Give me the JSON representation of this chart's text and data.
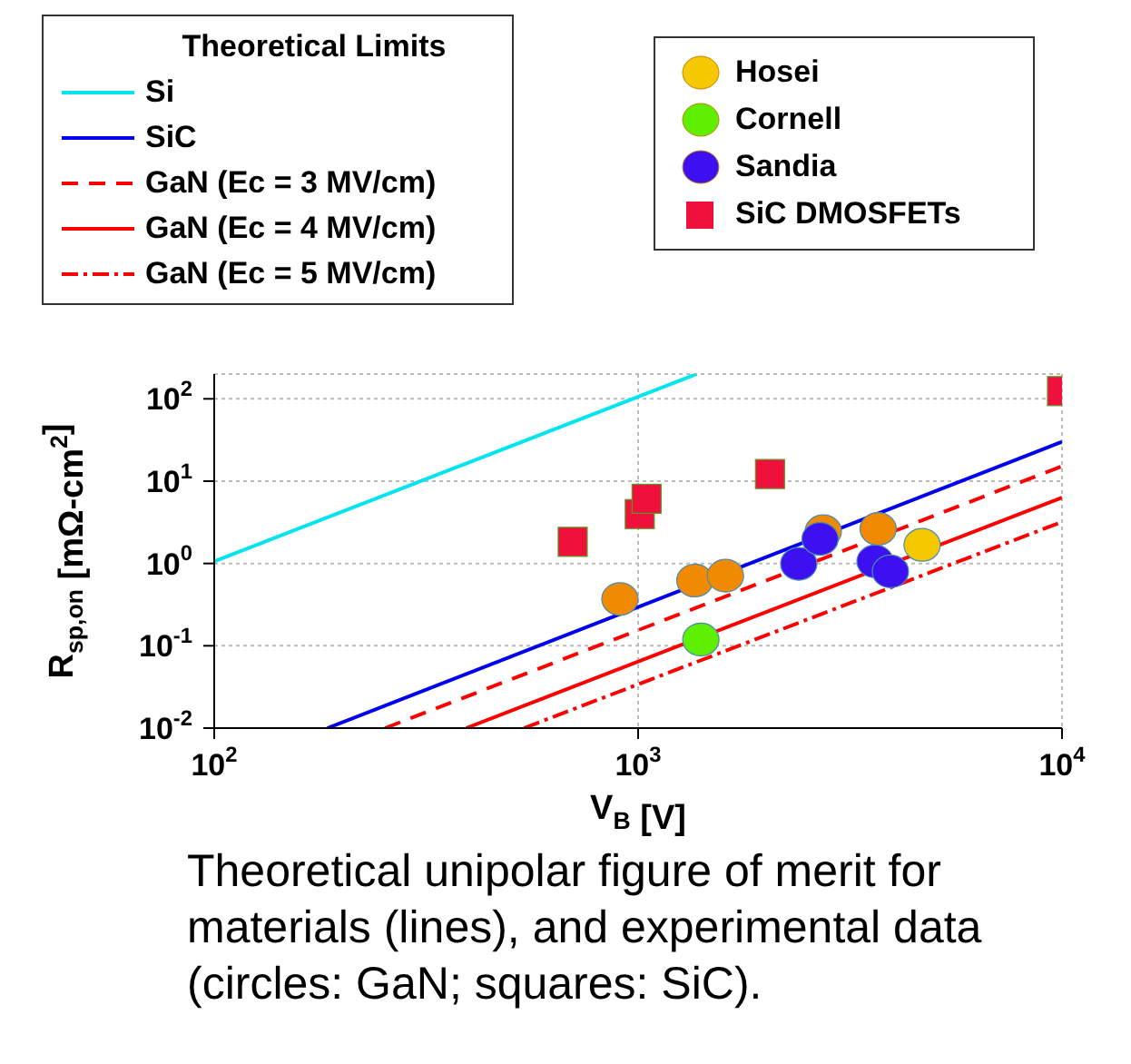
{
  "chart_data": {
    "type": "line",
    "xlabel": "V$_{B}$ [V]",
    "ylabel": "R$_{sp,on}$ [mΩ-cm$^{2}$]",
    "legend_title": "Theoretical Limits",
    "log": "xy",
    "grid": true,
    "legend": "top",
    "xlim": [
      100,
      10000
    ],
    "xticks": [
      {
        "value": 100,
        "label": "10$^{2}$"
      },
      {
        "value": 1000,
        "label": "10$^{3}$"
      },
      {
        "value": 10000,
        "label": "10$^{4}$"
      }
    ],
    "ylim": [
      0.01,
      200
    ],
    "yticks": [
      {
        "value": 0.01,
        "label": "10$^{-2}$"
      },
      {
        "value": 0.1,
        "label": "10$^{-1}$"
      },
      {
        "value": 1,
        "label": "10$^{0}$"
      },
      {
        "value": 10,
        "label": "10$^{1}$"
      },
      {
        "value": 100,
        "label": "10$^{2}$"
      }
    ],
    "series": [
      {
        "name": "Si",
        "color": "#00e5ee",
        "x": [
          100,
          1374
        ],
        "values": [
          1.06,
          200
        ],
        "line_style": "solid"
      },
      {
        "name": "SiC",
        "color": "#0000ee",
        "x": [
          185,
          10000
        ],
        "values": [
          0.01,
          30
        ],
        "line_style": "solid"
      },
      {
        "name": "GaN (Ec = 3 MV/cm)",
        "color": "#ff0000",
        "x": [
          253,
          10000
        ],
        "values": [
          0.01,
          15.2
        ],
        "line_style": "dashed"
      },
      {
        "name": "GaN (Ec = 4 MV/cm)",
        "color": "#ff0000",
        "x": [
          393,
          10000
        ],
        "values": [
          0.01,
          6.3
        ],
        "line_style": "solid"
      },
      {
        "name": "GaN (Ec = 5 MV/cm)",
        "color": "#ff0000",
        "x": [
          538,
          10000
        ],
        "values": [
          0.01,
          3.2
        ],
        "line_style": "dotted"
      },
      {
        "type": "scatter",
        "color": "#f08a00",
        "x": [
          906,
          1361,
          1607,
          2734,
          3683
        ],
        "values": [
          0.37,
          0.62,
          0.71,
          2.46,
          2.63
        ],
        "marker": "circle"
      },
      {
        "name": "Hosei",
        "type": "scatter",
        "color": "#f5c800",
        "x": [
          4677
        ],
        "values": [
          1.68
        ],
        "marker": "circle"
      },
      {
        "name": "Cornell",
        "type": "scatter",
        "color": "#5ef000",
        "x": [
          1406
        ],
        "values": [
          0.119
        ],
        "marker": "circle"
      },
      {
        "name": "Sandia",
        "type": "scatter",
        "color": "#3c10f0",
        "x": [
          2393,
          2687,
          3622,
          3937
        ],
        "values": [
          0.99,
          1.99,
          1.06,
          0.8
        ],
        "marker": "circle"
      },
      {
        "name": "SiC DMOSFETs",
        "type": "scatter",
        "color": "#f0103c",
        "x": [
          701,
          1009,
          1047,
          2047,
          10000
        ],
        "values": [
          1.83,
          3.98,
          6.1,
          12.2,
          124
        ],
        "marker": "square"
      }
    ],
    "annotations": [
      "Theoretical unipolar figure of merit for materials (lines), and experimental data (circles: GaN; squares: SiC)."
    ]
  }
}
